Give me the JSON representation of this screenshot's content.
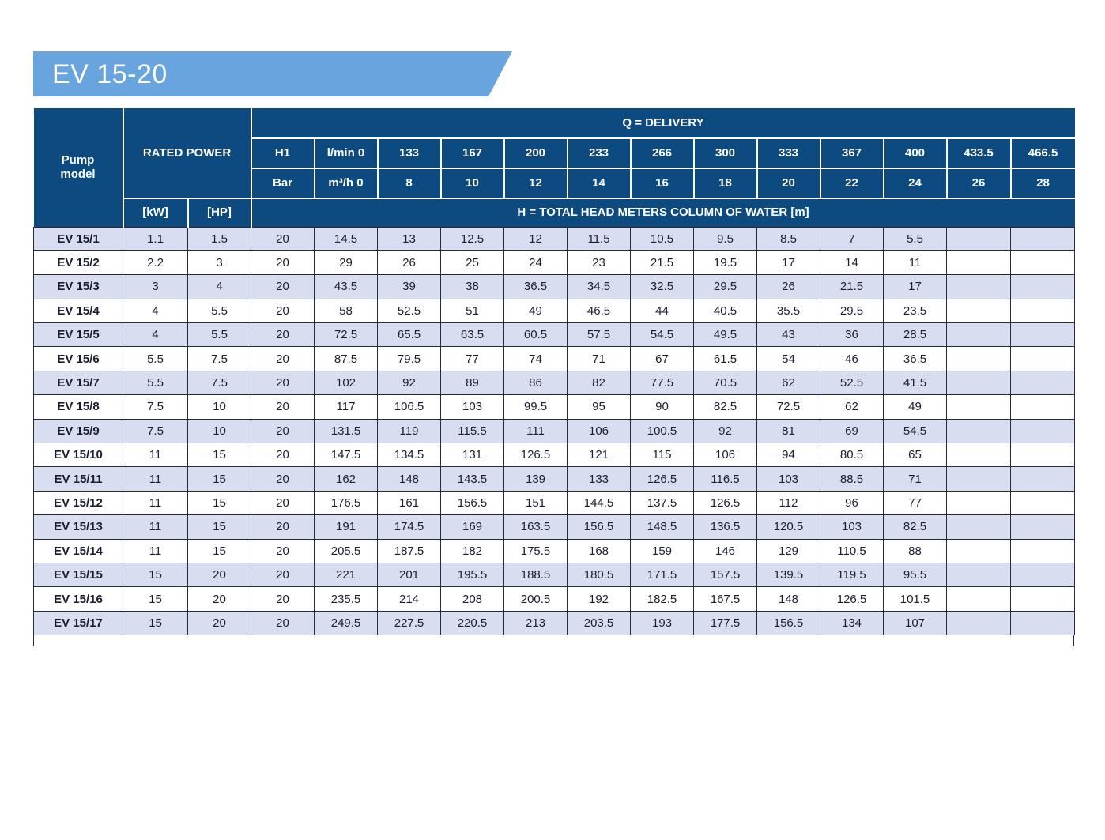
{
  "banner": {
    "title": "EV 15-20"
  },
  "colors": {
    "header_bg": "#0c4a80",
    "banner_bg": "#68a4dd",
    "stripe_bg": "#d8def0",
    "grid": "#262a3d"
  },
  "table": {
    "headers": {
      "pump_model": "Pump model",
      "rated_power": "RATED POWER",
      "delivery": "Q = DELIVERY",
      "kw": "[kW]",
      "hp": "[HP]",
      "h1": "H1",
      "bar": "Bar",
      "lmin_zero": "l/min 0",
      "m3h_zero": "m³/h 0",
      "total_head": "H = TOTAL HEAD METERS COLUMN OF WATER [m]"
    },
    "lmin_values": [
      "133",
      "167",
      "200",
      "233",
      "266",
      "300",
      "333",
      "367",
      "400",
      "433.5",
      "466.5"
    ],
    "m3h_values": [
      "8",
      "10",
      "12",
      "14",
      "16",
      "18",
      "20",
      "22",
      "24",
      "26",
      "28"
    ],
    "rows": [
      {
        "model": "EV 15/1",
        "kw": "1.1",
        "hp": "1.5",
        "h1": "20",
        "heads": [
          "14.5",
          "13",
          "12.5",
          "12",
          "11.5",
          "10.5",
          "9.5",
          "8.5",
          "7",
          "5.5",
          "",
          ""
        ]
      },
      {
        "model": "EV 15/2",
        "kw": "2.2",
        "hp": "3",
        "h1": "20",
        "heads": [
          "29",
          "26",
          "25",
          "24",
          "23",
          "21.5",
          "19.5",
          "17",
          "14",
          "11",
          "",
          ""
        ]
      },
      {
        "model": "EV 15/3",
        "kw": "3",
        "hp": "4",
        "h1": "20",
        "heads": [
          "43.5",
          "39",
          "38",
          "36.5",
          "34.5",
          "32.5",
          "29.5",
          "26",
          "21.5",
          "17",
          "",
          ""
        ]
      },
      {
        "model": "EV 15/4",
        "kw": "4",
        "hp": "5.5",
        "h1": "20",
        "heads": [
          "58",
          "52.5",
          "51",
          "49",
          "46.5",
          "44",
          "40.5",
          "35.5",
          "29.5",
          "23.5",
          "",
          ""
        ]
      },
      {
        "model": "EV 15/5",
        "kw": "4",
        "hp": "5.5",
        "h1": "20",
        "heads": [
          "72.5",
          "65.5",
          "63.5",
          "60.5",
          "57.5",
          "54.5",
          "49.5",
          "43",
          "36",
          "28.5",
          "",
          ""
        ]
      },
      {
        "model": "EV 15/6",
        "kw": "5.5",
        "hp": "7.5",
        "h1": "20",
        "heads": [
          "87.5",
          "79.5",
          "77",
          "74",
          "71",
          "67",
          "61.5",
          "54",
          "46",
          "36.5",
          "",
          ""
        ]
      },
      {
        "model": "EV 15/7",
        "kw": "5.5",
        "hp": "7.5",
        "h1": "20",
        "heads": [
          "102",
          "92",
          "89",
          "86",
          "82",
          "77.5",
          "70.5",
          "62",
          "52.5",
          "41.5",
          "",
          ""
        ]
      },
      {
        "model": "EV 15/8",
        "kw": "7.5",
        "hp": "10",
        "h1": "20",
        "heads": [
          "117",
          "106.5",
          "103",
          "99.5",
          "95",
          "90",
          "82.5",
          "72.5",
          "62",
          "49",
          "",
          ""
        ]
      },
      {
        "model": "EV 15/9",
        "kw": "7.5",
        "hp": "10",
        "h1": "20",
        "heads": [
          "131.5",
          "119",
          "115.5",
          "111",
          "106",
          "100.5",
          "92",
          "81",
          "69",
          "54.5",
          "",
          ""
        ]
      },
      {
        "model": "EV 15/10",
        "kw": "11",
        "hp": "15",
        "h1": "20",
        "heads": [
          "147.5",
          "134.5",
          "131",
          "126.5",
          "121",
          "115",
          "106",
          "94",
          "80.5",
          "65",
          "",
          ""
        ]
      },
      {
        "model": "EV 15/11",
        "kw": "11",
        "hp": "15",
        "h1": "20",
        "heads": [
          "162",
          "148",
          "143.5",
          "139",
          "133",
          "126.5",
          "116.5",
          "103",
          "88.5",
          "71",
          "",
          ""
        ]
      },
      {
        "model": "EV 15/12",
        "kw": "11",
        "hp": "15",
        "h1": "20",
        "heads": [
          "176.5",
          "161",
          "156.5",
          "151",
          "144.5",
          "137.5",
          "126.5",
          "112",
          "96",
          "77",
          "",
          ""
        ]
      },
      {
        "model": "EV 15/13",
        "kw": "11",
        "hp": "15",
        "h1": "20",
        "heads": [
          "191",
          "174.5",
          "169",
          "163.5",
          "156.5",
          "148.5",
          "136.5",
          "120.5",
          "103",
          "82.5",
          "",
          ""
        ]
      },
      {
        "model": "EV 15/14",
        "kw": "11",
        "hp": "15",
        "h1": "20",
        "heads": [
          "205.5",
          "187.5",
          "182",
          "175.5",
          "168",
          "159",
          "146",
          "129",
          "110.5",
          "88",
          "",
          ""
        ]
      },
      {
        "model": "EV 15/15",
        "kw": "15",
        "hp": "20",
        "h1": "20",
        "heads": [
          "221",
          "201",
          "195.5",
          "188.5",
          "180.5",
          "171.5",
          "157.5",
          "139.5",
          "119.5",
          "95.5",
          "",
          ""
        ]
      },
      {
        "model": "EV 15/16",
        "kw": "15",
        "hp": "20",
        "h1": "20",
        "heads": [
          "235.5",
          "214",
          "208",
          "200.5",
          "192",
          "182.5",
          "167.5",
          "148",
          "126.5",
          "101.5",
          "",
          ""
        ]
      },
      {
        "model": "EV 15/17",
        "kw": "15",
        "hp": "20",
        "h1": "20",
        "heads": [
          "249.5",
          "227.5",
          "220.5",
          "213",
          "203.5",
          "193",
          "177.5",
          "156.5",
          "134",
          "107",
          "",
          ""
        ]
      }
    ]
  }
}
